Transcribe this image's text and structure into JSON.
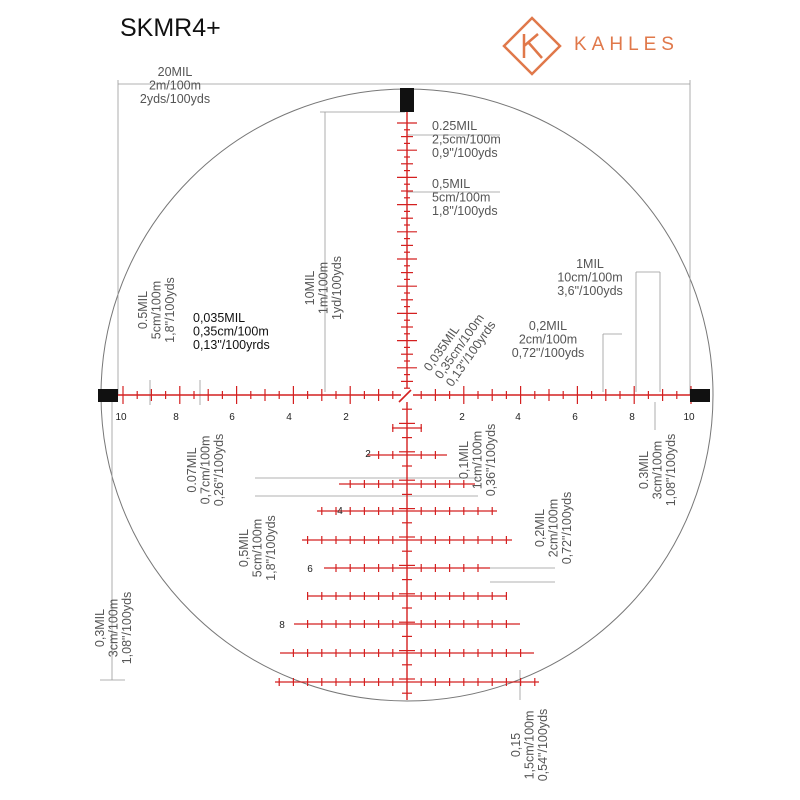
{
  "title": "SKMR4+",
  "brand": {
    "name": "KAHLES",
    "color": "#e0784a"
  },
  "colors": {
    "reticle_red": "#d42020",
    "dim_gray": "#555555",
    "circle": "#777777",
    "post": "#111111"
  },
  "h_scale": {
    "left": [
      "10",
      "8",
      "6",
      "4",
      "2"
    ],
    "right": [
      "2",
      "4",
      "6",
      "8",
      "10"
    ]
  },
  "v_scale": [
    "2",
    "4",
    "6",
    "8"
  ],
  "annotations": {
    "a20mil": [
      "20MIL",
      "2m/100m",
      "2yds/100yds"
    ],
    "a025": [
      "0.25MIL",
      "2,5cm/100m",
      "0,9\"/100yds"
    ],
    "a05top": [
      "0,5MIL",
      "5cm/100m",
      "1,8\"/100yds"
    ],
    "a10mil": [
      "10MIL",
      "1m/100m",
      "1yd/100yds"
    ],
    "a05left": [
      "0.5MIL",
      "5cm/100m",
      "1,8\"/100yds"
    ],
    "a0035h": [
      "0,035MIL",
      "0,35cm/100m",
      "0,13\"/100yrds"
    ],
    "a0035d": [
      "0,035MIL",
      "0,35cm/100m",
      "0,13\"/100yrds"
    ],
    "a1mil": [
      "1MIL",
      "10cm/100m",
      "3,6\"/100yds"
    ],
    "a02r": [
      "0,2MIL",
      "2cm/100m",
      "0,72\"/100yds"
    ],
    "a007": [
      "0.07MIL",
      "0,7cm/100m",
      "0,26\"/100yds"
    ],
    "a01": [
      "0,1MIL",
      "1cm/100m",
      "0,36\"/100yds"
    ],
    "a03r": [
      "0.3MIL",
      "3cm/100m",
      "1,08\"/100yds"
    ],
    "a05low": [
      "0,5MIL",
      "5cm/100m",
      "1,8\"/100yds"
    ],
    "a02low": [
      "0,2MIL",
      "2cm/100m",
      "0,72\"/100yds"
    ],
    "a03l": [
      "0,3MIL",
      "3cm/100m",
      "1,08\"/100yds"
    ],
    "a015": [
      "0,15",
      "1,5cm/100m",
      "0,54\"/100yds"
    ]
  }
}
